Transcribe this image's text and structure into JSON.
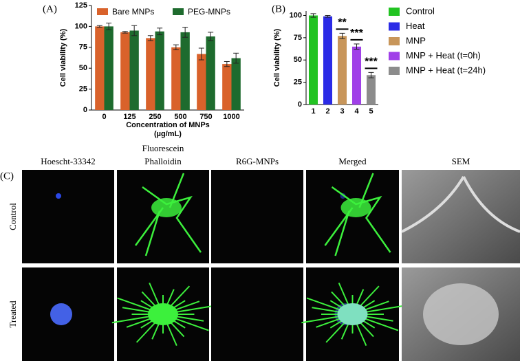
{
  "chart_data": [
    {
      "type": "bar",
      "label": "(A)",
      "ylabel": "Cell viability (%)",
      "xlabel": [
        "Concentration of MNPs",
        "(µg/mL)"
      ],
      "categories": [
        "0",
        "125",
        "250",
        "500",
        "750",
        "1000"
      ],
      "series": [
        {
          "name": "Bare MNPs",
          "color": "#d9622b",
          "values": [
            100,
            93,
            86,
            75,
            67,
            55
          ],
          "errors": [
            1,
            1,
            3,
            3,
            7,
            3
          ]
        },
        {
          "name": "PEG-MNPs",
          "color": "#1e6b2e",
          "values": [
            100,
            95,
            94,
            93,
            88,
            62
          ],
          "errors": [
            4,
            6,
            4,
            6,
            5,
            6
          ]
        }
      ],
      "ylim": [
        0,
        125
      ],
      "yticks": [
        0,
        25,
        50,
        75,
        100,
        125
      ]
    },
    {
      "type": "bar",
      "label": "(B)",
      "ylabel": "Cell viability (%)",
      "categories": [
        "1",
        "2",
        "3",
        "4",
        "5"
      ],
      "values": [
        100,
        99,
        77,
        65,
        33
      ],
      "errors": [
        2,
        1,
        3,
        3,
        3
      ],
      "colors": [
        "#22c322",
        "#2b2be6",
        "#c8965a",
        "#a040e8",
        "#8c8c8c"
      ],
      "legend": [
        "Control",
        "Heat",
        "MNP",
        "MNP + Heat (t=0h)",
        "MNP + Heat (t=24h)"
      ],
      "annotations": [
        null,
        null,
        "**",
        "***",
        "***"
      ],
      "ylim": [
        0,
        105
      ],
      "yticks": [
        0,
        25,
        50,
        75,
        100
      ]
    }
  ],
  "panel_c": {
    "label": "(C)",
    "columns": [
      [
        "Hoescht-33342"
      ],
      [
        "Fluorescein",
        "Phalloidin"
      ],
      [
        "R6G-MNPs"
      ],
      [
        "Merged"
      ],
      [
        "SEM"
      ]
    ],
    "rows": [
      "Control",
      "Treated"
    ]
  }
}
